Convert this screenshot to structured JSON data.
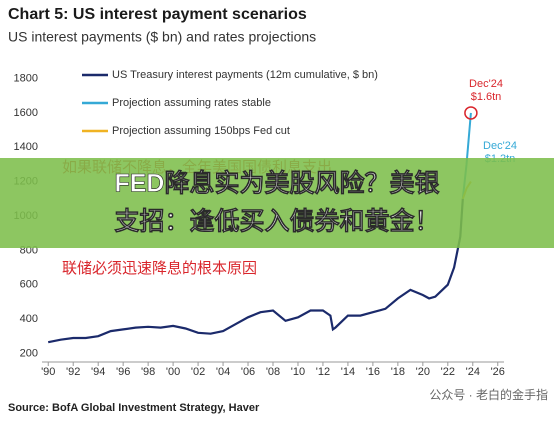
{
  "chart_data": {
    "type": "line",
    "title": "Chart 5: US interest payment scenarios",
    "subtitle": "US interest payments ($ bn) and rates projections",
    "series": [
      {
        "name": "US Treasury interest payments (12m cumulative, $ bn)",
        "color": "#1b2a6b",
        "x": [
          1990,
          1991,
          1992,
          1993,
          1994,
          1995,
          1996,
          1997,
          1998,
          1999,
          2000,
          2001,
          2002,
          2003,
          2004,
          2005,
          2006,
          2007,
          2008,
          2009,
          2010,
          2011,
          2012,
          2012.6,
          2012.8,
          2013,
          2014,
          2015,
          2016,
          2017,
          2018,
          2019,
          2020,
          2020.5,
          2021,
          2022,
          2022.5,
          2023,
          2023.2
        ],
        "values": [
          265,
          280,
          290,
          290,
          300,
          330,
          340,
          350,
          355,
          350,
          360,
          345,
          320,
          315,
          330,
          370,
          410,
          440,
          450,
          390,
          410,
          450,
          450,
          420,
          340,
          350,
          420,
          420,
          440,
          460,
          520,
          570,
          540,
          520,
          530,
          600,
          700,
          880,
          1100
        ]
      },
      {
        "name": "Projection assuming rates stable",
        "color": "#35a9d6",
        "x": [
          2023.2,
          2023.5,
          2023.85
        ],
        "values": [
          1100,
          1300,
          1600
        ]
      },
      {
        "name": "Projection assuming 150bps Fed cut",
        "color": "#f0b323",
        "x": [
          2023.2,
          2023.5,
          2023.85
        ],
        "values": [
          1100,
          1160,
          1200
        ]
      }
    ],
    "annotations": [
      {
        "lines": [
          "Dec'24",
          "$1.6tn"
        ],
        "color": "#d9262c"
      },
      {
        "lines": [
          "Dec'24",
          "$1.2tn"
        ],
        "color": "#35a9d6"
      }
    ],
    "xlim": [
      1989.5,
      2026.5
    ],
    "xticks": [
      {
        "value": 1990,
        "label": "'90"
      },
      {
        "value": 1992,
        "label": "'92"
      },
      {
        "value": 1994,
        "label": "'94"
      },
      {
        "value": 1996,
        "label": "'96"
      },
      {
        "value": 1998,
        "label": "'98"
      },
      {
        "value": 2000,
        "label": "'00"
      },
      {
        "value": 2002,
        "label": "'02"
      },
      {
        "value": 2004,
        "label": "'04"
      },
      {
        "value": 2006,
        "label": "'06"
      },
      {
        "value": 2008,
        "label": "'08"
      },
      {
        "value": 2010,
        "label": "'10"
      },
      {
        "value": 2012,
        "label": "'12"
      },
      {
        "value": 2014,
        "label": "'14"
      },
      {
        "value": 2016,
        "label": "'16"
      },
      {
        "value": 2018,
        "label": "'18"
      },
      {
        "value": 2020,
        "label": "'20"
      },
      {
        "value": 2022,
        "label": "'22"
      },
      {
        "value": 2024,
        "label": "'24"
      },
      {
        "value": 2026,
        "label": "'26"
      }
    ],
    "ylim": [
      150,
      1850
    ],
    "yticks": [
      200,
      400,
      600,
      800,
      1000,
      1200,
      1400,
      1600,
      1800
    ],
    "source": "Source: BofA Global Investment Strategy, Haver"
  },
  "overlay": {
    "notes": [
      "如果联储不降息，全年美国国债利息支出",
      "联储必须迅速降息的根本原因"
    ],
    "headline": [
      "FED降息实为美股风险？美银",
      "支招：逢低买入债券和黄金！"
    ],
    "watermark": "公众号 · 老白的金手指"
  }
}
